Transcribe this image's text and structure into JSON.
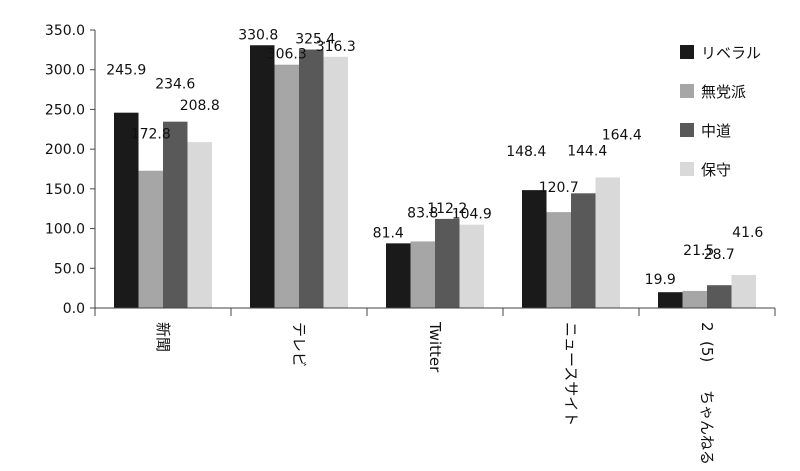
{
  "chart_data": {
    "type": "bar",
    "categories": [
      "新聞",
      "テレビ",
      "Twitter",
      "ニュースサイト",
      "2(5)ちゃんねる"
    ],
    "category_lines": [
      [
        "新聞"
      ],
      [
        "テレビ"
      ],
      [
        "Twitter"
      ],
      [
        "ニュースサイト"
      ],
      [
        "2",
        "(5)",
        "ちゃんねる"
      ]
    ],
    "series": [
      {
        "name": "リベラル",
        "color": "#1a1a1a",
        "values": [
          245.9,
          330.8,
          81.4,
          148.4,
          19.9
        ]
      },
      {
        "name": "無党派",
        "color": "#a6a6a6",
        "values": [
          172.8,
          306.3,
          83.8,
          120.7,
          21.5
        ]
      },
      {
        "name": "中道",
        "color": "#595959",
        "values": [
          234.6,
          325.4,
          112.2,
          144.4,
          28.7
        ]
      },
      {
        "name": "保守",
        "color": "#d9d9d9",
        "values": [
          208.8,
          316.3,
          104.9,
          164.4,
          41.6
        ]
      }
    ],
    "ylim": [
      0,
      350
    ],
    "yticks": [
      "0.0",
      "50.0",
      "100.0",
      "150.0",
      "200.0",
      "250.0",
      "300.0",
      "350.0"
    ],
    "grid": false,
    "legend_position": "right"
  }
}
